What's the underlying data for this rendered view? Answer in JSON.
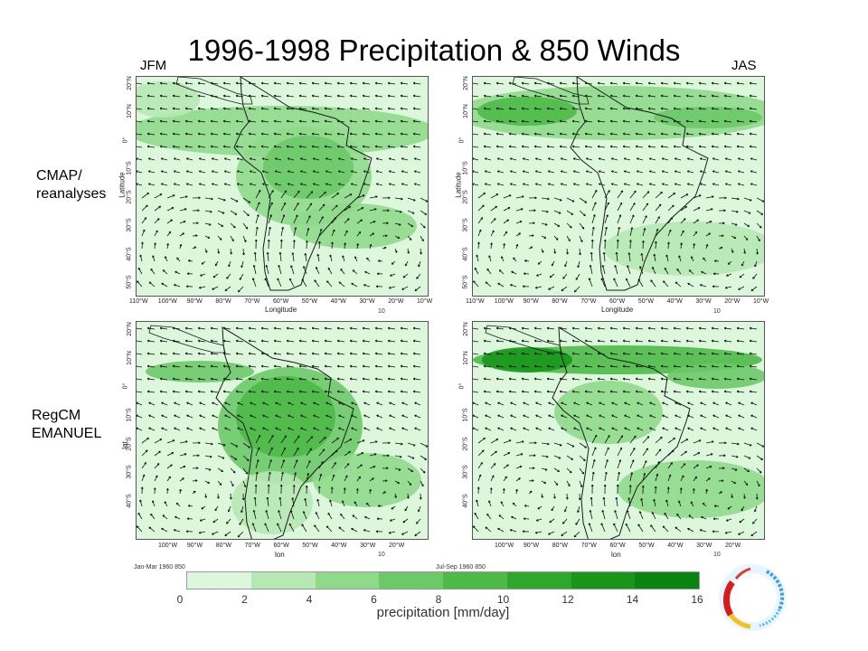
{
  "title": "1996-1998 Precipitation & 850 Winds",
  "season_labels": {
    "left": "JFM",
    "right": "JAS"
  },
  "row_labels": {
    "top": "CMAP/\nreanalyses",
    "bottom": "RegCM\nEMANUEL"
  },
  "top_row": {
    "lon_ticks": [
      "110°W",
      "100°W",
      "90°W",
      "80°W",
      "70°W",
      "60°W",
      "50°W",
      "40°W",
      "30°W",
      "20°W",
      "10°W"
    ],
    "lat_ticks": [
      "20°N",
      "10°N",
      "0°",
      "10°S",
      "20°S",
      "30°S",
      "40°S",
      "50°S"
    ],
    "xlabel": "Longitude",
    "ylabel": "Latitude",
    "vector_ref": "10"
  },
  "bottom_row": {
    "lon_ticks": [
      "100°W",
      "90°W",
      "80°W",
      "70°W",
      "60°W",
      "50°W",
      "40°W",
      "30°W",
      "20°W"
    ],
    "lat_ticks": [
      "20°N",
      "10°N",
      "0°",
      "10°S",
      "20°S",
      "30°S",
      "40°S"
    ],
    "xlabel": "lon",
    "ylabel": "lat",
    "vector_ref": "10"
  },
  "bottom_captions": {
    "left": "Jan-Mar 1960 850",
    "right": "Jul-Sep 1960 850"
  },
  "colorbar": {
    "label": "precipitation [mm/day]",
    "ticks": [
      "0",
      "2",
      "4",
      "6",
      "8",
      "10",
      "12",
      "14",
      "16"
    ],
    "colors": [
      "#dcf7dc",
      "#b6e8b4",
      "#8fd98b",
      "#6cc968",
      "#4cba47",
      "#2ea82a",
      "#17961a",
      "#0a8410"
    ]
  },
  "colors": {
    "land_outline": "#1a1a1a",
    "arrow": "#111111",
    "panel_border": "#555555"
  }
}
